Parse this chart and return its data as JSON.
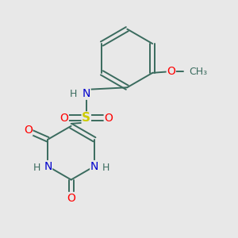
{
  "background_color": "#e8e8e8",
  "atom_colors": {
    "C": "#3a6b5e",
    "N": "#0000cc",
    "O": "#ff0000",
    "S": "#cccc00",
    "H": "#3a6b5e"
  },
  "bond_color": "#3a6b5e",
  "figsize": [
    3.0,
    3.0
  ],
  "dpi": 100
}
